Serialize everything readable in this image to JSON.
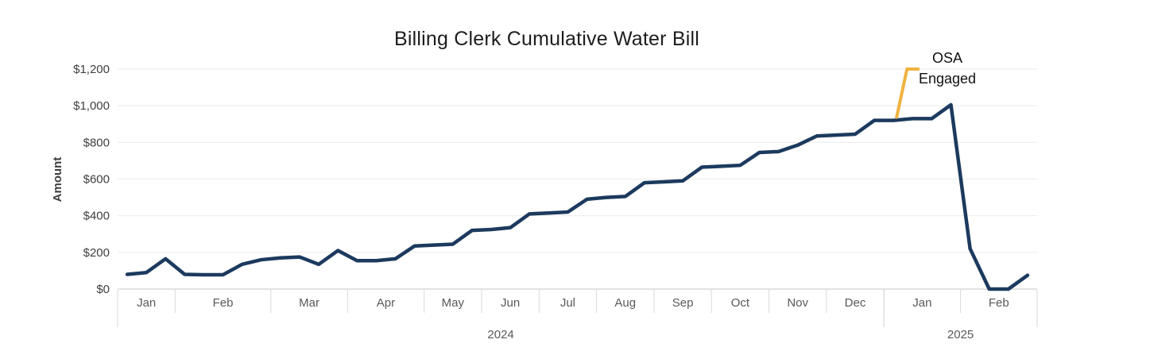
{
  "chart_data": {
    "type": "line",
    "title": "Billing Clerk Cumulative Water Bill",
    "ylabel": "Amount",
    "ylim": [
      0,
      1200
    ],
    "grid": true,
    "legend": "none",
    "y_ticks": [
      {
        "v": 0,
        "label": "$0"
      },
      {
        "v": 200,
        "label": "$200"
      },
      {
        "v": 400,
        "label": "$400"
      },
      {
        "v": 600,
        "label": "$600"
      },
      {
        "v": 800,
        "label": "$800"
      },
      {
        "v": 1000,
        "label": "$1,000"
      },
      {
        "v": 1200,
        "label": "$1,200"
      }
    ],
    "x_axis": {
      "groups": [
        {
          "year": "2024",
          "months": [
            {
              "label": "Jan",
              "points": 3
            },
            {
              "label": "Feb",
              "points": 5
            },
            {
              "label": "Mar",
              "points": 4
            },
            {
              "label": "Apr",
              "points": 4
            },
            {
              "label": "May",
              "points": 3
            },
            {
              "label": "Jun",
              "points": 3
            },
            {
              "label": "Jul",
              "points": 3
            },
            {
              "label": "Aug",
              "points": 3
            },
            {
              "label": "Sep",
              "points": 3
            },
            {
              "label": "Oct",
              "points": 3
            },
            {
              "label": "Nov",
              "points": 3
            },
            {
              "label": "Dec",
              "points": 3
            }
          ]
        },
        {
          "year": "2025",
          "months": [
            {
              "label": "Jan",
              "points": 4
            },
            {
              "label": "Feb",
              "points": 4
            }
          ]
        }
      ]
    },
    "series": [
      {
        "name": "Cumulative water bill",
        "values": [
          80,
          90,
          165,
          80,
          78,
          78,
          135,
          160,
          170,
          175,
          135,
          210,
          155,
          155,
          165,
          235,
          240,
          245,
          320,
          325,
          335,
          410,
          415,
          420,
          490,
          500,
          505,
          580,
          585,
          590,
          665,
          670,
          675,
          745,
          750,
          785,
          835,
          840,
          845,
          920,
          920,
          930,
          930,
          1005,
          220,
          0,
          0,
          75
        ]
      }
    ],
    "annotation": {
      "lines": [
        "OSA",
        "Engaged"
      ],
      "point_index": 40
    },
    "colors": {
      "line": "#1C3A5E",
      "callout": "#F0B240",
      "grid": "#EBEBEB",
      "zero_axis": "#C6C6C6",
      "divider": "#D9D9D9",
      "tick_text": "#404040",
      "month_text": "#595959",
      "title_text": "#1D1D1D",
      "annotation_text": "#111111"
    }
  }
}
